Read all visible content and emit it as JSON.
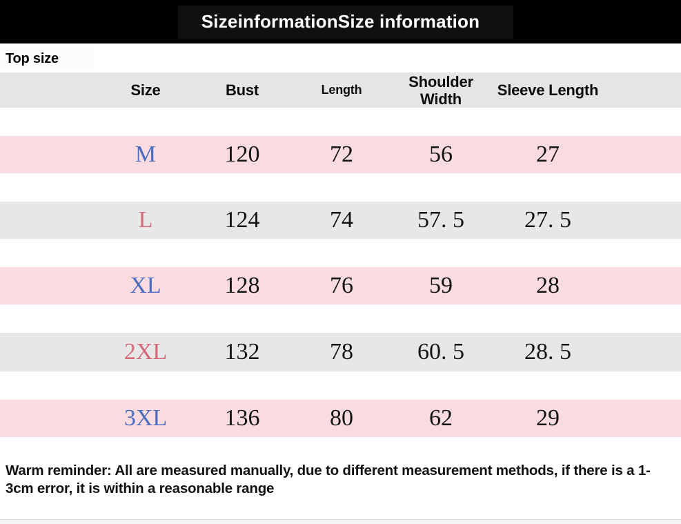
{
  "title": "SizeinformationSize information",
  "section_label": "Top size",
  "table": {
    "columns": [
      "Size",
      "Bust",
      "Length",
      "Shoulder Width",
      "Sleeve Length"
    ],
    "rows": [
      {
        "size": "M",
        "bust": "120",
        "length": "72",
        "shoulder_width": "56",
        "sleeve_length": "27"
      },
      {
        "size": "L",
        "bust": "124",
        "length": "74",
        "shoulder_width": "57. 5",
        "sleeve_length": "27. 5"
      },
      {
        "size": "XL",
        "bust": "128",
        "length": "76",
        "shoulder_width": "59",
        "sleeve_length": "28"
      },
      {
        "size": "2XL",
        "bust": "132",
        "length": "78",
        "shoulder_width": "60. 5",
        "sleeve_length": "28. 5"
      },
      {
        "size": "3XL",
        "bust": "136",
        "length": "80",
        "shoulder_width": "62",
        "sleeve_length": "29"
      }
    ]
  },
  "footer_note": "Warm reminder: All are measured manually, due to different measurement methods, if there is a 1-3cm error, it is within a reasonable range",
  "colors": {
    "title_bg": "#000000",
    "title_text": "#ffffff",
    "header_row_bg": "#e6e4e4",
    "row_pink": "#f9dbe0",
    "row_gray": "#e8e7e7",
    "size_blue": "#4c6cc0",
    "size_rose": "#d5697a",
    "body_text": "#141414"
  }
}
